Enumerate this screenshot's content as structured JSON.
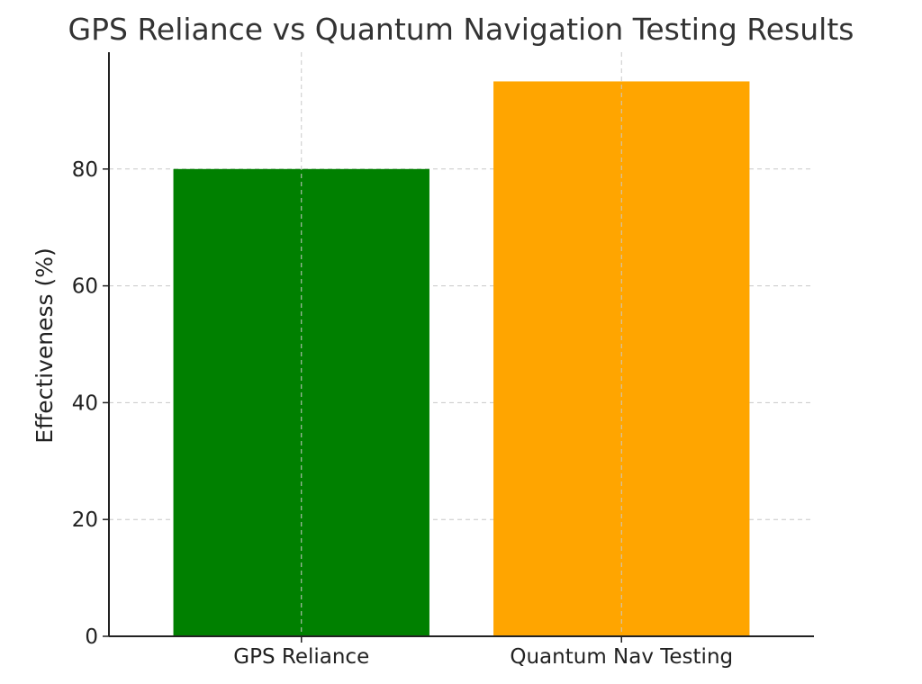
{
  "chart_data": {
    "type": "bar",
    "title": "GPS Reliance vs Quantum Navigation Testing Results",
    "xlabel": "",
    "ylabel": "Effectiveness (%)",
    "categories": [
      "GPS Reliance",
      "Quantum Nav Testing"
    ],
    "values": [
      80,
      95
    ],
    "colors": [
      "#008000",
      "#FFA500"
    ],
    "ylim": [
      0,
      100
    ],
    "yticks": [
      0,
      20,
      40,
      60,
      80
    ],
    "grid": true
  }
}
